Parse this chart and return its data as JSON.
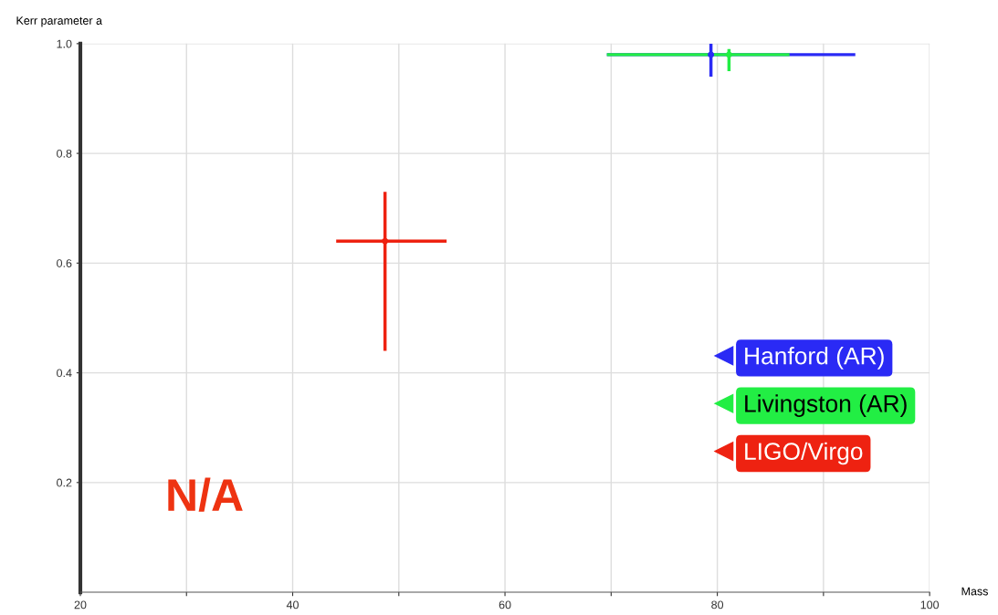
{
  "chart_data": {
    "type": "scatter",
    "xlabel": "Mass",
    "ylabel": "Kerr parameter a",
    "xlim": [
      20,
      100
    ],
    "ylim": [
      0,
      1
    ],
    "xticks": [
      20,
      {
        "value": 30,
        "label": null
      },
      40,
      {
        "value": 50,
        "label": null
      },
      60,
      {
        "value": 70,
        "label": null
      },
      80,
      {
        "value": 90,
        "label": null
      },
      100
    ],
    "yticks": [
      {
        "value": 0.2,
        "label": "0.2"
      },
      {
        "value": 0.4,
        "label": "0.4"
      },
      {
        "value": 0.6,
        "label": "0.6"
      },
      {
        "value": 0.8,
        "label": "0.8"
      },
      {
        "value": 1.0,
        "label": "1.0"
      }
    ],
    "grid": true,
    "marker": "circle",
    "legend": "right",
    "series": [
      {
        "name": "Hanford (AR)",
        "color": "#2a2af5",
        "x": [
          79.4
        ],
        "values": [
          0.98
        ],
        "xerrors": [
          [
            69.6,
            93.0
          ]
        ],
        "errors": [
          [
            0.94,
            1.0
          ]
        ]
      },
      {
        "name": "Livingston (AR)",
        "color": "#22ee44",
        "x": [
          81.1
        ],
        "values": [
          0.98
        ],
        "xerrors": [
          [
            69.6,
            86.8
          ]
        ],
        "errors": [
          [
            0.95,
            0.99
          ]
        ]
      },
      {
        "name": "LIGO/Virgo",
        "color": "#ee2211",
        "x": [
          48.7
        ],
        "values": [
          0.64
        ],
        "xerrors": [
          [
            44.1,
            54.5
          ]
        ],
        "errors": [
          [
            0.44,
            0.73
          ]
        ]
      }
    ],
    "annotations": [
      "N/A"
    ]
  }
}
